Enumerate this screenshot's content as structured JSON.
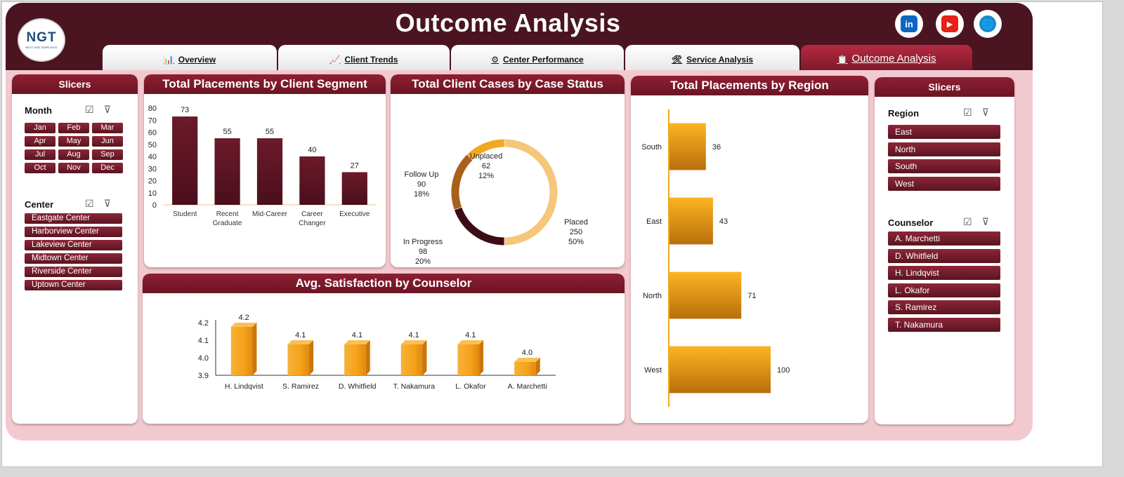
{
  "header": {
    "title": "Outcome Analysis",
    "logo_text": "NGT",
    "logo_sub": "NEXT GEN TEMPLATES",
    "social": [
      {
        "name": "linkedin-icon",
        "glyph": "in",
        "color": "#0a66c2"
      },
      {
        "name": "youtube-icon",
        "glyph": "▶",
        "color": "#e62117"
      },
      {
        "name": "website-icon",
        "glyph": "🌐",
        "color": "#1e88c8"
      }
    ]
  },
  "tabs": [
    {
      "label": "Overview",
      "icon": "📊"
    },
    {
      "label": "Client Trends",
      "icon": "📈"
    },
    {
      "label": "Center Performance",
      "icon": "⚙"
    },
    {
      "label": "Service Analysis",
      "icon": "🛠"
    },
    {
      "label": "Outcome Analysis",
      "icon": "📋"
    }
  ],
  "left_slicers": {
    "header": "Slicers",
    "month": {
      "title": "Month",
      "items": [
        "Jan",
        "Feb",
        "Mar",
        "Apr",
        "May",
        "Jun",
        "Jul",
        "Aug",
        "Sep",
        "Oct",
        "Nov",
        "Dec"
      ]
    },
    "center": {
      "title": "Center",
      "items": [
        "Eastgate Center",
        "Harborview Center",
        "Lakeview Center",
        "Midtown Center",
        "Riverside Center",
        "Uptown Center"
      ]
    }
  },
  "right_slicers": {
    "header": "Slicers",
    "region": {
      "title": "Region",
      "items": [
        "East",
        "North",
        "South",
        "West"
      ]
    },
    "counselor": {
      "title": "Counselor",
      "items": [
        "A. Marchetti",
        "D. Whitfield",
        "H. Lindqvist",
        "L. Okafor",
        "S. Ramirez",
        "T. Nakamura"
      ]
    }
  },
  "icons": {
    "select_all": "☑",
    "clear_filter": "⊽"
  },
  "chart_data": [
    {
      "id": "segment",
      "type": "bar",
      "title": "Total Placements by Client Segment",
      "categories": [
        "Student",
        "Recent Graduate",
        "Mid-Career",
        "Career Changer",
        "Executive"
      ],
      "values": [
        73,
        55,
        55,
        40,
        27
      ],
      "ylim": [
        0,
        80
      ],
      "yticks": [
        0,
        10,
        20,
        30,
        40,
        50,
        60,
        70,
        80
      ],
      "color": "#4a0f1c"
    },
    {
      "id": "status",
      "type": "pie",
      "title": "Total Client Cases by Case Status",
      "labels": [
        "Placed",
        "In Progress",
        "Follow Up",
        "Unplaced"
      ],
      "values": [
        250,
        98,
        90,
        62
      ],
      "percents": [
        "50%",
        "20%",
        "18%",
        "12%"
      ],
      "colors": [
        "#f5c77a",
        "#3d0d16",
        "#a8601a",
        "#f2a81e"
      ]
    },
    {
      "id": "counselor",
      "type": "bar",
      "title": "Avg. Satisfaction by Counselor",
      "categories": [
        "H. Lindqvist",
        "S. Ramirez",
        "D. Whitfield",
        "T. Nakamura",
        "L. Okafor",
        "A. Marchetti"
      ],
      "values": [
        4.2,
        4.1,
        4.1,
        4.1,
        4.1,
        4.0
      ],
      "labels": [
        "4.2",
        "4.1",
        "4.1",
        "4.1",
        "4.1",
        "4.0"
      ],
      "ylim": [
        3.9,
        4.2
      ],
      "yticks": [
        "3.9",
        "4.0",
        "4.1",
        "4.2"
      ],
      "color": "#f5a21a"
    },
    {
      "id": "region",
      "type": "bar",
      "orientation": "horizontal",
      "title": "Total Placements by Region",
      "categories": [
        "South",
        "East",
        "North",
        "West"
      ],
      "values": [
        36,
        43,
        71,
        100
      ],
      "xlim": [
        0,
        100
      ],
      "color": "#f5a21a"
    }
  ]
}
